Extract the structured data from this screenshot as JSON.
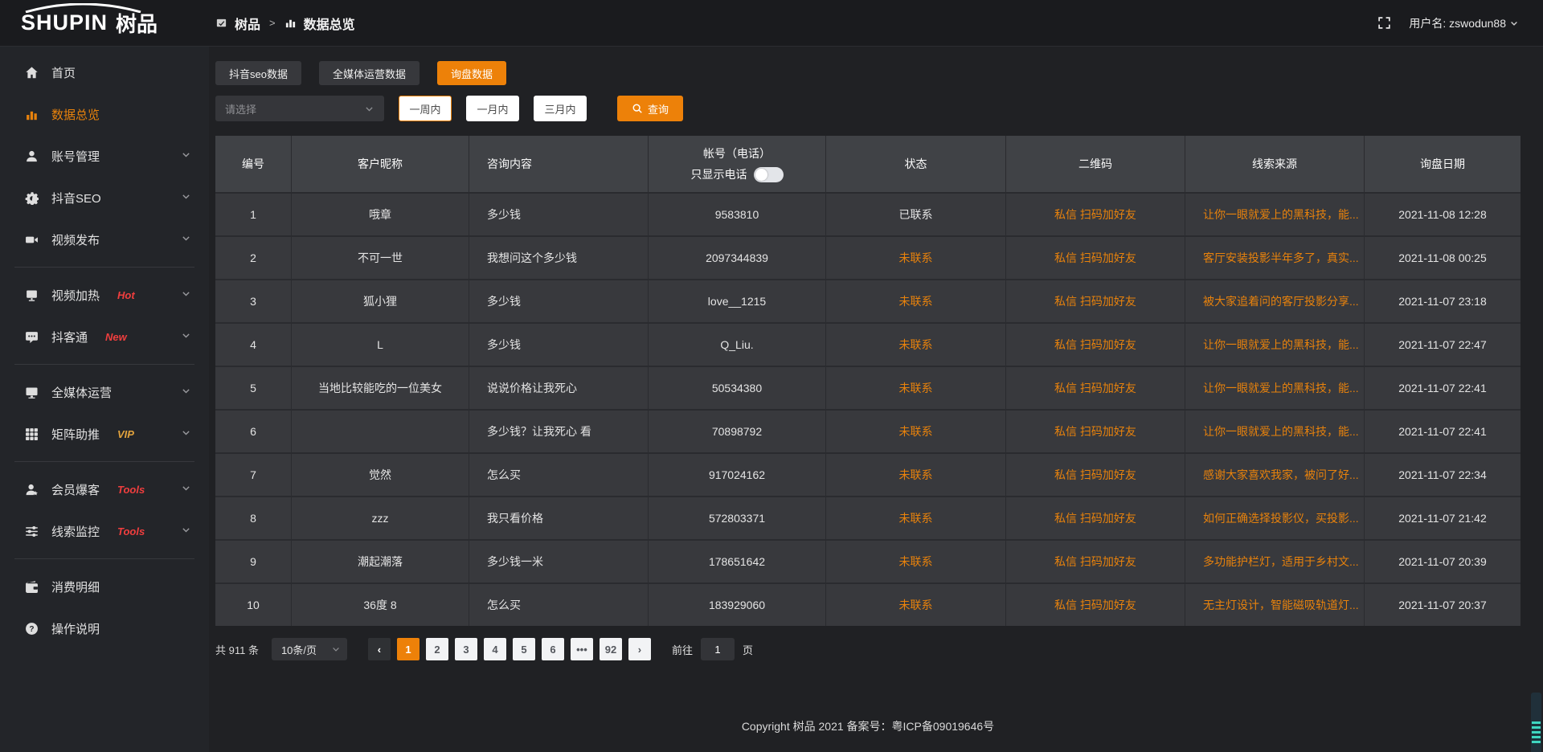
{
  "topbar": {
    "logo_text": "SHUPIN",
    "logo_cn": "树品",
    "breadcrumb": [
      {
        "label": "树品"
      },
      {
        "label": "数据总览"
      }
    ],
    "breadcrumb_sep": ">",
    "username_label": "用户名: zswodun88"
  },
  "sidebar": {
    "items": [
      {
        "label": "首页",
        "icon": "home-icon"
      },
      {
        "label": "数据总览",
        "icon": "chart-icon",
        "active": true
      },
      {
        "label": "账号管理",
        "icon": "user-icon",
        "chevron": true
      },
      {
        "label": "抖音SEO",
        "icon": "gear-icon",
        "chevron": true
      },
      {
        "label": "视频发布",
        "icon": "video-icon",
        "chevron": true,
        "divider_after": true
      },
      {
        "label": "视频加热",
        "icon": "display-icon",
        "badge": "Hot",
        "badge_color": "#f03e3e",
        "chevron": true
      },
      {
        "label": "抖客通",
        "icon": "chat-icon",
        "badge": "New",
        "badge_color": "#f03e3e",
        "chevron": true,
        "divider_after": true
      },
      {
        "label": "全媒体运营",
        "icon": "monitor-icon",
        "chevron": true
      },
      {
        "label": "矩阵助推",
        "icon": "grid-icon",
        "badge": "VIP",
        "badge_color": "#e2a33d",
        "chevron": true,
        "divider_after": true
      },
      {
        "label": "会员爆客",
        "icon": "member-icon",
        "badge": "Tools",
        "badge_color": "#f03e3e",
        "chevron": true
      },
      {
        "label": "线索监控",
        "icon": "sliders-icon",
        "badge": "Tools",
        "badge_color": "#f03e3e",
        "chevron": true,
        "divider_after": true
      },
      {
        "label": "消费明细",
        "icon": "wallet-icon"
      },
      {
        "label": "操作说明",
        "icon": "question-icon"
      }
    ]
  },
  "tabs": [
    {
      "label": "抖音seo数据",
      "active": false
    },
    {
      "label": "全媒体运营数据",
      "active": false
    },
    {
      "label": "询盘数据",
      "active": true
    }
  ],
  "filters": {
    "select_placeholder": "请选择",
    "periods": [
      {
        "label": "一周内",
        "selected": true
      },
      {
        "label": "一月内",
        "selected": false
      },
      {
        "label": "三月内",
        "selected": false
      }
    ],
    "search_label": "查询"
  },
  "table": {
    "headers": [
      "编号",
      "客户昵称",
      "咨询内容",
      "帐号（电话）",
      "状态",
      "二维码",
      "线索来源",
      "询盘日期"
    ],
    "account_toggle_label": "只显示电话",
    "rows": [
      {
        "id": "1",
        "nickname": "哦章",
        "content": "多少钱",
        "account": "9583810",
        "status": "已联系",
        "contacted": true,
        "qrcode": "私信 扫码加好友",
        "source": "让你一眼就爱上的黑科技，能...",
        "date": "2021-11-08 12:28"
      },
      {
        "id": "2",
        "nickname": "不可一世",
        "content": "我想问这个多少钱",
        "account": "2097344839",
        "status": "未联系",
        "contacted": false,
        "qrcode": "私信 扫码加好友",
        "source": "客厅安装投影半年多了，真实...",
        "date": "2021-11-08 00:25"
      },
      {
        "id": "3",
        "nickname": "狐小狸",
        "content": "多少钱",
        "account": "love__1215",
        "status": "未联系",
        "contacted": false,
        "qrcode": "私信 扫码加好友",
        "source": "被大家追着问的客厅投影分享...",
        "date": "2021-11-07 23:18"
      },
      {
        "id": "4",
        "nickname": "L",
        "content": "多少钱",
        "account": "Q_Liu.",
        "status": "未联系",
        "contacted": false,
        "qrcode": "私信 扫码加好友",
        "source": "让你一眼就爱上的黑科技，能...",
        "date": "2021-11-07 22:47"
      },
      {
        "id": "5",
        "nickname": "当地比较能吃的一位美女",
        "content": "说说价格让我死心",
        "account": "50534380",
        "status": "未联系",
        "contacted": false,
        "qrcode": "私信 扫码加好友",
        "source": "让你一眼就爱上的黑科技，能...",
        "date": "2021-11-07 22:41"
      },
      {
        "id": "6",
        "nickname": "",
        "content": "多少钱？让我死心 看",
        "account": "70898792",
        "status": "未联系",
        "contacted": false,
        "qrcode": "私信 扫码加好友",
        "source": "让你一眼就爱上的黑科技，能...",
        "date": "2021-11-07 22:41"
      },
      {
        "id": "7",
        "nickname": "觉然",
        "content": "怎么买",
        "account": "917024162",
        "status": "未联系",
        "contacted": false,
        "qrcode": "私信 扫码加好友",
        "source": "感谢大家喜欢我家，被问了好...",
        "date": "2021-11-07 22:34"
      },
      {
        "id": "8",
        "nickname": "zzz",
        "content": "我只看价格",
        "account": "572803371",
        "status": "未联系",
        "contacted": false,
        "qrcode": "私信 扫码加好友",
        "source": "如何正确选择投影仪，买投影...",
        "date": "2021-11-07 21:42"
      },
      {
        "id": "9",
        "nickname": "潮起潮落",
        "content": "多少钱一米",
        "account": "178651642",
        "status": "未联系",
        "contacted": false,
        "qrcode": "私信 扫码加好友",
        "source": "多功能护栏灯，适用于乡村文...",
        "date": "2021-11-07 20:39"
      },
      {
        "id": "10",
        "nickname": "36度 8",
        "content": "怎么买",
        "account": "183929060",
        "status": "未联系",
        "contacted": false,
        "qrcode": "私信 扫码加好友",
        "source": "无主灯设计，智能磁吸轨道灯...",
        "date": "2021-11-07 20:37"
      }
    ]
  },
  "pagination": {
    "total_label": "共 911 条",
    "page_size_label": "10条/页",
    "pages": [
      "1",
      "2",
      "3",
      "4",
      "5",
      "6",
      "•••",
      "92"
    ],
    "active_page": "1",
    "goto_label_prefix": "前往",
    "goto_value": "1",
    "goto_label_suffix": "页"
  },
  "footer": {
    "copyright": "Copyright 树品 2021 备案号：粤ICP备09019646号"
  },
  "colors": {
    "accent": "#ed8109",
    "link_orange": "#e8820c",
    "hot_red": "#f03e3e",
    "vip_yellow": "#e2a33d"
  }
}
